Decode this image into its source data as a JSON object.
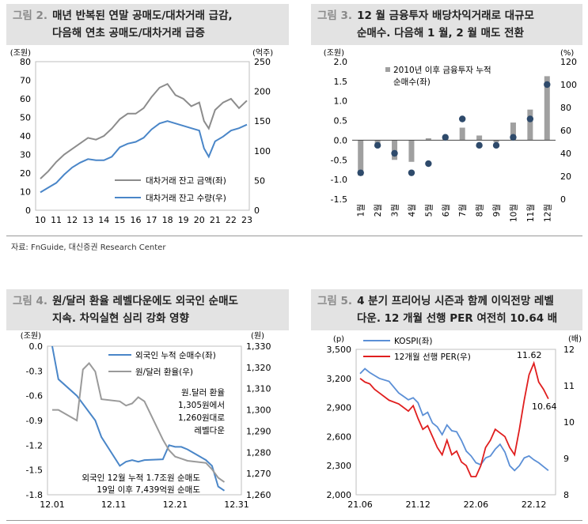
{
  "source": "자료: FnGuide, 대신증권 Research Center",
  "chart_data": [
    {
      "type": "line",
      "figure": "그림 2.",
      "title": "매년 반복된 연말 공매도/대차거래 급감, 다음해 연초 공매도/대차거래 급증",
      "title_lines": [
        "매년 반복된 연말 공매도/대차거래 급감,",
        "다음해 연초 공매도/대차거래 급증"
      ],
      "y_left_unit": "(조원)",
      "y_right_unit": "(억주)",
      "x_ticks": [
        "10",
        "11",
        "12",
        "13",
        "14",
        "15",
        "16",
        "17",
        "18",
        "19",
        "20",
        "21",
        "22",
        "23"
      ],
      "y_left_ticks": [
        0,
        10,
        20,
        30,
        40,
        50,
        60,
        70,
        80
      ],
      "y_right_ticks": [
        0,
        50,
        100,
        150,
        200,
        250
      ],
      "ylim_left": [
        0,
        80
      ],
      "ylim_right": [
        0,
        250
      ],
      "xlim": [
        10,
        23
      ],
      "series": [
        {
          "name": "대차거래 잔고 금액(좌)",
          "axis": "left",
          "color": "#8c8c8c",
          "x": [
            10.0,
            10.5,
            11.0,
            11.5,
            12.0,
            12.5,
            13.0,
            13.5,
            14.0,
            14.5,
            15.0,
            15.5,
            16.0,
            16.5,
            17.0,
            17.5,
            18.0,
            18.5,
            19.0,
            19.5,
            20.0,
            20.3,
            20.6,
            21.0,
            21.5,
            22.0,
            22.5,
            23.0
          ],
          "y": [
            17,
            21,
            26,
            30,
            33,
            36,
            39,
            38,
            40,
            44,
            49,
            52,
            52,
            55,
            61,
            66,
            68,
            62,
            60,
            56,
            58,
            48,
            44,
            54,
            58,
            60,
            55,
            59
          ]
        },
        {
          "name": "대차거래 잔고 수량(우)",
          "axis": "right",
          "color": "#4a86c8",
          "x": [
            10.0,
            10.5,
            11.0,
            11.5,
            12.0,
            12.5,
            13.0,
            13.5,
            14.0,
            14.5,
            15.0,
            15.5,
            16.0,
            16.5,
            17.0,
            17.5,
            18.0,
            18.5,
            19.0,
            19.5,
            20.0,
            20.3,
            20.6,
            21.0,
            21.5,
            22.0,
            22.5,
            23.0
          ],
          "y": [
            30,
            38,
            46,
            60,
            72,
            80,
            86,
            84,
            84,
            90,
            106,
            112,
            115,
            122,
            136,
            146,
            150,
            146,
            142,
            138,
            134,
            104,
            90,
            116,
            124,
            134,
            138,
            144
          ]
        }
      ]
    },
    {
      "type": "bar",
      "figure": "그림 3.",
      "title": "12 월 금융투자 배당차익거래로 대규모 순매수. 다음해 1 월, 2 월 매도 전환",
      "title_lines": [
        "12 월 금융투자 배당차익거래로 대규모",
        "순매수. 다음해 1 월, 2 월 매도 전환"
      ],
      "y_left_unit": "(조원)",
      "y_right_unit": "(%)",
      "categories": [
        "1월",
        "2월",
        "3월",
        "4월",
        "5월",
        "6월",
        "7월",
        "8월",
        "9월",
        "10월",
        "11월",
        "12월"
      ],
      "y_left_ticks": [
        -1.5,
        -1.0,
        -0.5,
        0.0,
        0.5,
        1.0,
        1.5,
        2.0
      ],
      "y_right_ticks": [
        0,
        20,
        40,
        60,
        80,
        100,
        120
      ],
      "ylim_left": [
        -1.5,
        2.0
      ],
      "ylim_right": [
        0,
        120
      ],
      "series": [
        {
          "name": "2010년 이후 금융투자 누적 순매수(좌)",
          "type": "bar",
          "axis": "left",
          "color": "#a0a0a0",
          "values": [
            -0.9,
            -0.15,
            -0.5,
            -0.55,
            0.05,
            0.08,
            0.32,
            0.12,
            -0.05,
            0.45,
            0.78,
            1.63
          ]
        },
        {
          "name": "",
          "type": "scatter",
          "axis": "right",
          "color": "#2e4a6b",
          "values": [
            23,
            47,
            40,
            23,
            31,
            54,
            70,
            47,
            47,
            54,
            70,
            100
          ]
        }
      ],
      "legend_lines": [
        "2010년 이후 금융투자 누적",
        "순매수(좌)"
      ]
    },
    {
      "type": "line",
      "figure": "그림 4.",
      "title": "원/달러 환율 레벨다운에도 외국인 순매도 지속. 차익실현 심리 강화 영향",
      "title_lines": [
        "원/달러 환율 레벨다운에도 외국인 순매도",
        "지속. 차익실현 심리 강화 영향"
      ],
      "y_left_unit": "(조원)",
      "y_right_unit": "(원)",
      "x_ticks": [
        "12.01",
        "12.11",
        "12.21",
        "12.31"
      ],
      "y_left_ticks": [
        0.0,
        -0.3,
        -0.6,
        -0.9,
        -1.2,
        -1.5,
        -1.8
      ],
      "y_right_ticks": [
        1260,
        1270,
        1280,
        1290,
        1300,
        1310,
        1320,
        1330
      ],
      "ylim_left": [
        -1.8,
        0.0
      ],
      "ylim_right": [
        1260,
        1330
      ],
      "xlim": [
        1,
        31
      ],
      "series": [
        {
          "name": "외국인 누적 순매수(좌)",
          "axis": "left",
          "color": "#4a86c8",
          "x": [
            1,
            2,
            5,
            8,
            9,
            12,
            13,
            14,
            15,
            16,
            19,
            20,
            21,
            22,
            23,
            26,
            27,
            28,
            29
          ],
          "y": [
            0.0,
            -0.4,
            -0.6,
            -0.9,
            -1.1,
            -1.45,
            -1.4,
            -1.38,
            -1.4,
            -1.38,
            -1.37,
            -1.2,
            -1.22,
            -1.22,
            -1.25,
            -1.38,
            -1.45,
            -1.7,
            -1.75
          ]
        },
        {
          "name": "원/달러 환율(우)",
          "axis": "right",
          "color": "#9a9a9a",
          "x": [
            1,
            2,
            5,
            6,
            7,
            8,
            9,
            12,
            13,
            14,
            15,
            16,
            19,
            20,
            21,
            22,
            23,
            26,
            27,
            28,
            29
          ],
          "y": [
            1300,
            1300,
            1295,
            1319,
            1322,
            1318,
            1305,
            1304,
            1302,
            1303,
            1306,
            1304,
            1286,
            1281,
            1278,
            1277,
            1276,
            1275,
            1272,
            1268,
            1266
          ]
        }
      ],
      "annotations": [
        {
          "lines": [
            "원.달러 환율",
            "1,305원에서",
            "1,260원대로",
            "레벨다운"
          ]
        },
        {
          "lines": [
            "외국인 12월 누적 1.7조원 순매도",
            "19일 이후 7,439억원 순매도"
          ]
        }
      ]
    },
    {
      "type": "line",
      "figure": "그림 5.",
      "title": "4 분기 프리어닝 시즌과 함께 이익전망 레벨다운. 12 개월 선행 PER 여전히 10.64 배",
      "title_lines": [
        "4 분기 프리어닝 시즌과 함께 이익전망 레벨",
        "다운. 12 개월 선행 PER 여전히 10.64 배"
      ],
      "y_left_unit": "(p)",
      "y_right_unit": "(배)",
      "x_ticks": [
        "21.06",
        "21.12",
        "22.06",
        "22.12"
      ],
      "y_left_ticks": [
        2000,
        2300,
        2600,
        2900,
        3200,
        3500
      ],
      "y_right_ticks": [
        8,
        9,
        10,
        11,
        12
      ],
      "ylim_left": [
        2000,
        3500
      ],
      "ylim_right": [
        8,
        12
      ],
      "xlim": [
        0,
        20
      ],
      "series": [
        {
          "name": "KOSPI(좌)",
          "axis": "left",
          "color": "#5b8fd6",
          "x": [
            0,
            0.5,
            1,
            1.5,
            2,
            3,
            4,
            5,
            5.5,
            6,
            6.5,
            7,
            7.5,
            8,
            8.5,
            9,
            9.5,
            10,
            10.5,
            11,
            11.5,
            12,
            12.5,
            13,
            13.5,
            14,
            14.5,
            15,
            15.5,
            16,
            16.5,
            17,
            17.5,
            18,
            18.5,
            19,
            19.5
          ],
          "y": [
            3250,
            3300,
            3260,
            3230,
            3200,
            3170,
            3050,
            2980,
            3000,
            2950,
            2820,
            2850,
            2740,
            2700,
            2620,
            2720,
            2660,
            2650,
            2560,
            2450,
            2400,
            2330,
            2310,
            2380,
            2400,
            2470,
            2520,
            2440,
            2300,
            2250,
            2300,
            2380,
            2400,
            2360,
            2330,
            2290,
            2250
          ]
        },
        {
          "name": "12개월 선행 PER(우)",
          "axis": "right",
          "color": "#e01e1e",
          "x": [
            0,
            0.5,
            1,
            1.5,
            2,
            3,
            4,
            5,
            5.5,
            6,
            6.5,
            7,
            7.5,
            8,
            8.5,
            9,
            9.5,
            10,
            10.5,
            11,
            11.5,
            12,
            12.5,
            13,
            13.5,
            14,
            14.5,
            15,
            15.5,
            16,
            16.5,
            17,
            17.5,
            18,
            18.5,
            19,
            19.5
          ],
          "y": [
            11.2,
            11.1,
            11.05,
            10.9,
            10.8,
            10.6,
            10.5,
            10.3,
            10.45,
            10.1,
            9.8,
            9.9,
            9.6,
            9.3,
            9.1,
            9.5,
            9.1,
            9.2,
            8.9,
            8.8,
            8.5,
            8.5,
            8.8,
            9.3,
            9.5,
            9.8,
            9.7,
            9.6,
            9.3,
            9.1,
            9.8,
            10.6,
            11.3,
            11.62,
            11.1,
            10.9,
            10.64
          ]
        }
      ],
      "annotations": [
        {
          "text": "11.62"
        },
        {
          "text": "10.64"
        }
      ]
    }
  ]
}
